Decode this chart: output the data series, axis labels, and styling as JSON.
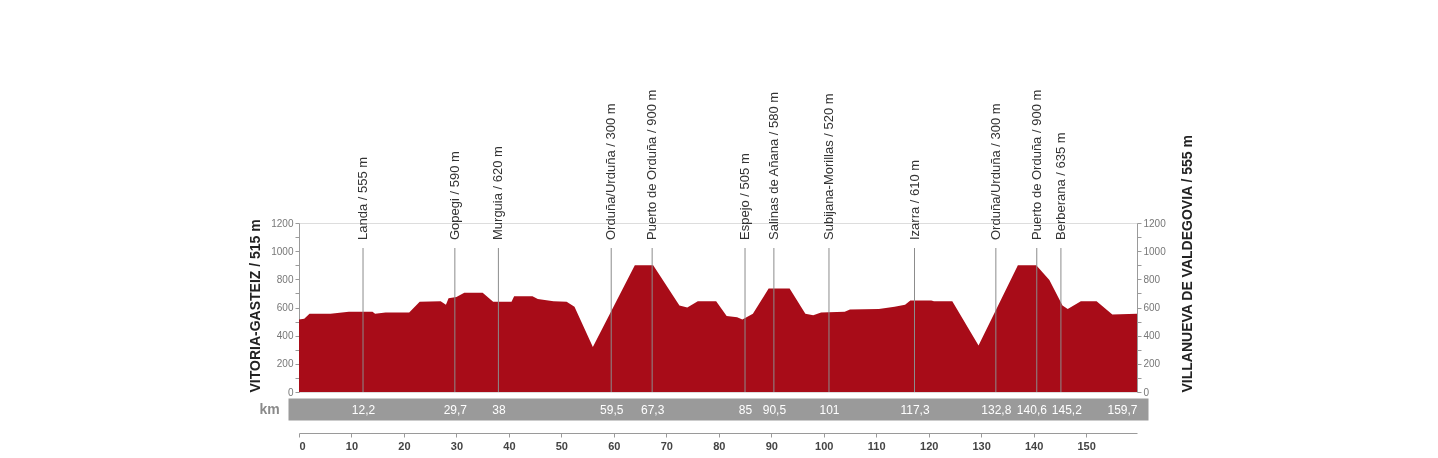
{
  "chart_data": {
    "type": "area",
    "color": "#a80c18",
    "x": [
      0,
      1,
      2,
      6,
      9.5,
      14,
      14.5,
      16.5,
      21,
      23,
      27,
      28,
      28.5,
      30,
      31.5,
      35,
      37,
      40.5,
      41,
      44.5,
      45.5,
      48.5,
      51,
      52.5,
      56,
      64,
      67.5,
      72.5,
      74,
      76,
      79.5,
      81.5,
      83.5,
      84.5,
      86.5,
      89.5,
      93.5,
      96.5,
      98,
      99.5,
      104,
      105,
      110.5,
      113.5,
      115.5,
      116.5,
      120.5,
      121,
      124.5,
      129.5,
      137,
      140.5,
      143,
      145.5,
      146.5,
      149,
      152,
      155,
      159.7
    ],
    "values": [
      515,
      520,
      555,
      555,
      570,
      570,
      555,
      565,
      565,
      640,
      645,
      620,
      665,
      675,
      705,
      705,
      640,
      640,
      680,
      680,
      660,
      645,
      640,
      605,
      320,
      900,
      900,
      615,
      600,
      645,
      645,
      540,
      530,
      515,
      555,
      735,
      735,
      555,
      545,
      565,
      570,
      585,
      590,
      605,
      620,
      650,
      650,
      645,
      645,
      330,
      900,
      900,
      795,
      615,
      590,
      645,
      645,
      550,
      555
    ],
    "xlim": [
      0,
      159.7
    ],
    "xticks": [
      0,
      10,
      20,
      30,
      40,
      50,
      60,
      70,
      80,
      90,
      100,
      110,
      120,
      130,
      140,
      150
    ],
    "x2lim": [
      0,
      159.7
    ],
    "x2label": "km",
    "x2ticks": [
      {
        "value": 12.2,
        "label": "12,2"
      },
      {
        "value": 29.7,
        "label": "29,7"
      },
      38,
      {
        "value": 59.5,
        "label": "59,5"
      },
      {
        "value": 67.3,
        "label": "67,3"
      },
      85,
      {
        "value": 90.5,
        "label": "90,5"
      },
      101,
      {
        "value": 117.3,
        "label": "117,3"
      },
      {
        "value": 132.8,
        "label": "132,8"
      },
      {
        "value": 140.6,
        "label": "140,6"
      },
      {
        "value": 145.2,
        "label": "145,2"
      },
      {
        "value": 159.7,
        "label": "159,7"
      }
    ],
    "ylim": [
      0,
      1200
    ],
    "yticks": [
      0,
      {
        "value": 100,
        "label": null
      },
      200,
      {
        "value": 300,
        "label": null
      },
      400,
      {
        "value": 500,
        "label": null
      },
      600,
      {
        "value": 700,
        "label": null
      },
      800,
      {
        "value": 900,
        "label": null
      },
      1000,
      {
        "value": 1100,
        "label": null
      },
      1200
    ],
    "y2lim": [
      0,
      1200
    ],
    "y2ticks": [
      0,
      {
        "value": 100,
        "label": null
      },
      200,
      {
        "value": 300,
        "label": null
      },
      400,
      {
        "value": 500,
        "label": null
      },
      600,
      {
        "value": 700,
        "label": null
      },
      800,
      {
        "value": 900,
        "label": null
      },
      1000,
      {
        "value": 1100,
        "label": null
      },
      1200
    ],
    "ylabel": "VITORIA-GASTEIZ / 515 m",
    "y2label": "VILLANUEVA DE VALDEGOVIA / 555 m",
    "ref_lines": [
      {
        "axis": "x",
        "value": 12.2,
        "label": "Landa / 555 m",
        "color": "#8c8c8c"
      },
      {
        "axis": "x",
        "value": 29.7,
        "label": "Gopegi / 590 m",
        "color": "#8c8c8c"
      },
      {
        "axis": "x",
        "value": 38,
        "label": "Murguia / 620 m",
        "color": "#8c8c8c"
      },
      {
        "axis": "x",
        "value": 59.5,
        "label": "Orduña/Urduña / 300 m",
        "color": "#8c8c8c"
      },
      {
        "axis": "x",
        "value": 67.3,
        "label": "Puerto de Orduña / 900 m",
        "color": "#8c8c8c"
      },
      {
        "axis": "x",
        "value": 85,
        "label": "Espejo / 505 m",
        "color": "#8c8c8c"
      },
      {
        "axis": "x",
        "value": 90.5,
        "label": "Salinas de Añana / 580 m",
        "color": "#8c8c8c"
      },
      {
        "axis": "x",
        "value": 101,
        "label": "Subijana-Morillas / 520 m",
        "color": "#8c8c8c"
      },
      {
        "axis": "x",
        "value": 117.3,
        "label": "Izarra / 610 m",
        "color": "#8c8c8c"
      },
      {
        "axis": "x",
        "value": 132.8,
        "label": "Orduña/Urduña / 300 m",
        "color": "#8c8c8c"
      },
      {
        "axis": "x",
        "value": 140.6,
        "label": "Puerto de Orduña / 900 m",
        "color": "#8c8c8c"
      },
      {
        "axis": "x",
        "value": 145.2,
        "label": "Berberana / 635 m",
        "color": "#8c8c8c"
      }
    ]
  }
}
